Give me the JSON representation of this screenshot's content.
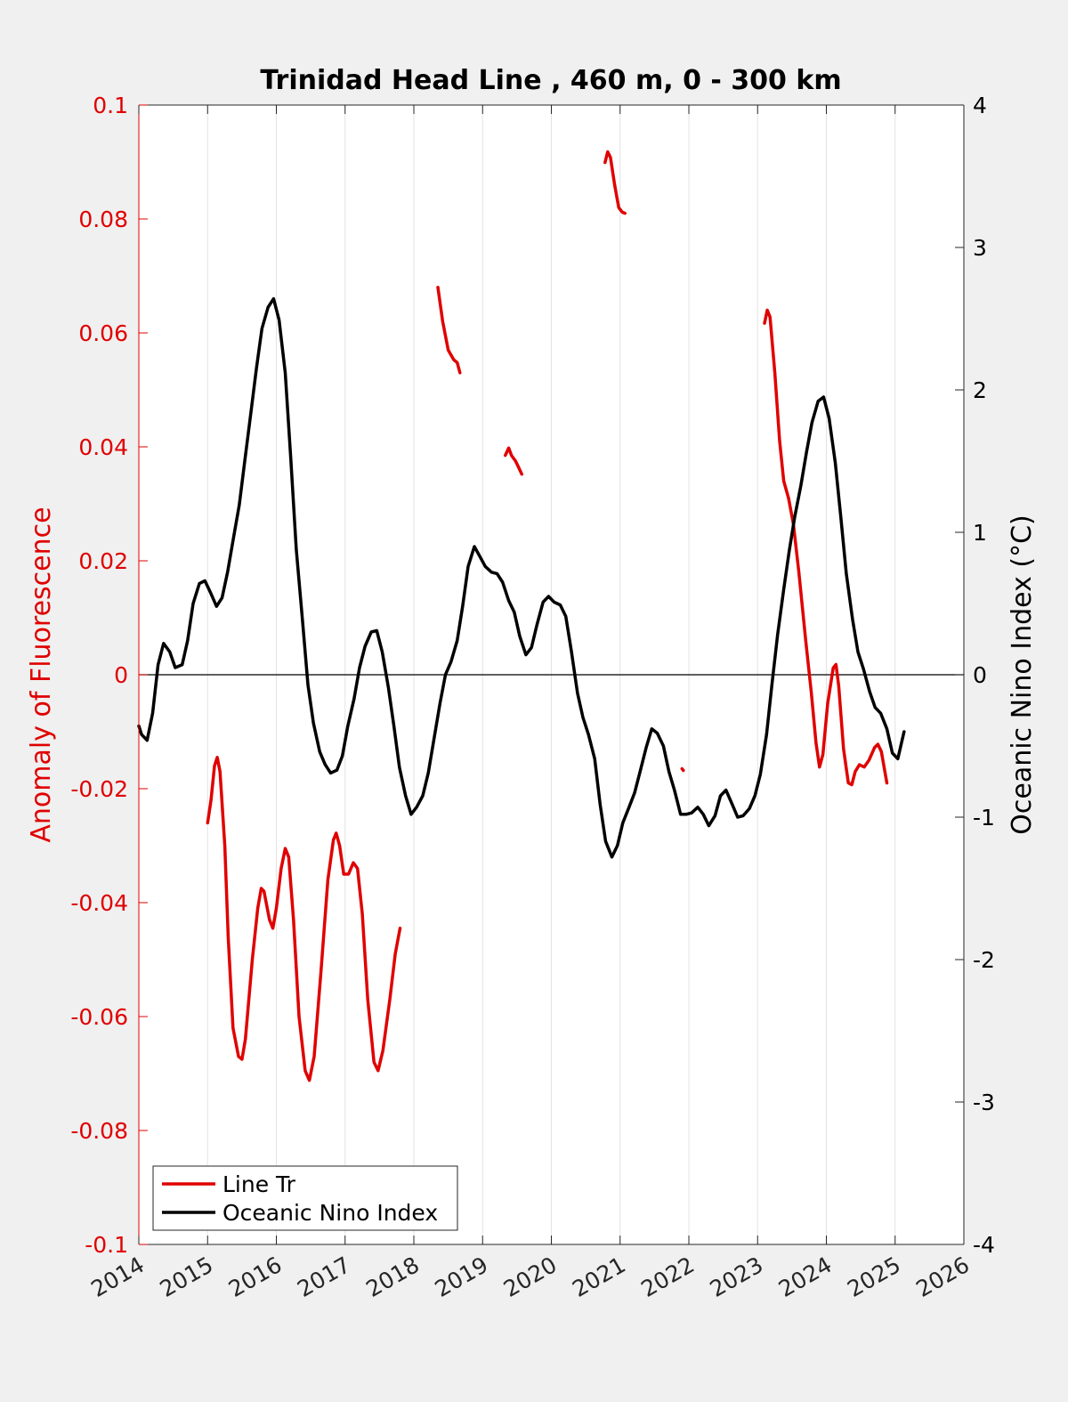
{
  "chart_data": {
    "type": "line",
    "title": "Trinidad Head Line , 460 m, 0 - 300 km",
    "ylabel": "Anomaly of Fluorescence",
    "ylabel_right": "Oceanic Nino Index (°C)",
    "xlim": [
      2014,
      2026
    ],
    "ylim": [
      -0.1,
      0.1
    ],
    "ylim_right": [
      -4,
      4
    ],
    "x_ticks": [
      "2014",
      "2015",
      "2016",
      "2017",
      "2018",
      "2019",
      "2020",
      "2021",
      "2022",
      "2023",
      "2024",
      "2025",
      "2026"
    ],
    "y_ticks_left": [
      "0.1",
      "0.08",
      "0.06",
      "0.04",
      "0.02",
      "0",
      "-0.02",
      "-0.04",
      "-0.06",
      "-0.08",
      "-0.1"
    ],
    "y_ticks_right": [
      "4",
      "3",
      "2",
      "1",
      "0",
      "-1",
      "-2",
      "-3",
      "-4"
    ],
    "grid": "vertical",
    "legend_position": "bottom-left",
    "colors": {
      "line_tr": "#e00000",
      "oni": "#000000",
      "axis_left": "#e00000"
    },
    "series": [
      {
        "name": "Line Tr",
        "axis": "left",
        "segments": [
          [
            [
              2015.0,
              -0.026
            ],
            [
              2015.05,
              -0.022
            ],
            [
              2015.1,
              -0.016
            ],
            [
              2015.14,
              -0.0145
            ],
            [
              2015.18,
              -0.017
            ],
            [
              2015.25,
              -0.03
            ],
            [
              2015.3,
              -0.046
            ],
            [
              2015.37,
              -0.062
            ],
            [
              2015.45,
              -0.067
            ],
            [
              2015.5,
              -0.0675
            ],
            [
              2015.55,
              -0.064
            ],
            [
              2015.65,
              -0.05
            ],
            [
              2015.73,
              -0.041
            ],
            [
              2015.78,
              -0.0375
            ],
            [
              2015.82,
              -0.038
            ],
            [
              2015.9,
              -0.043
            ],
            [
              2015.95,
              -0.0445
            ],
            [
              2016.0,
              -0.041
            ],
            [
              2016.07,
              -0.034
            ],
            [
              2016.13,
              -0.0305
            ],
            [
              2016.18,
              -0.032
            ],
            [
              2016.25,
              -0.043
            ],
            [
              2016.33,
              -0.06
            ],
            [
              2016.42,
              -0.0695
            ],
            [
              2016.48,
              -0.0712
            ],
            [
              2016.55,
              -0.067
            ],
            [
              2016.65,
              -0.052
            ],
            [
              2016.75,
              -0.036
            ],
            [
              2016.83,
              -0.029
            ],
            [
              2016.87,
              -0.0278
            ],
            [
              2016.92,
              -0.03
            ],
            [
              2016.98,
              -0.035
            ],
            [
              2017.05,
              -0.035
            ],
            [
              2017.12,
              -0.033
            ],
            [
              2017.18,
              -0.034
            ],
            [
              2017.25,
              -0.042
            ],
            [
              2017.33,
              -0.057
            ],
            [
              2017.42,
              -0.068
            ],
            [
              2017.48,
              -0.0695
            ],
            [
              2017.55,
              -0.066
            ],
            [
              2017.65,
              -0.057
            ],
            [
              2017.73,
              -0.049
            ],
            [
              2017.8,
              -0.0445
            ]
          ],
          [
            [
              2018.35,
              0.068
            ],
            [
              2018.42,
              0.062
            ],
            [
              2018.5,
              0.057
            ],
            [
              2018.58,
              0.0553
            ],
            [
              2018.63,
              0.0548
            ],
            [
              2018.67,
              0.053
            ]
          ],
          [
            [
              2019.33,
              0.0385
            ],
            [
              2019.38,
              0.0398
            ],
            [
              2019.42,
              0.0385
            ],
            [
              2019.48,
              0.0375
            ],
            [
              2019.52,
              0.0365
            ],
            [
              2019.57,
              0.0352
            ]
          ],
          [
            [
              2020.78,
              0.0899
            ],
            [
              2020.82,
              0.0918
            ],
            [
              2020.86,
              0.0908
            ],
            [
              2020.92,
              0.086
            ],
            [
              2020.98,
              0.082
            ],
            [
              2021.03,
              0.0812
            ],
            [
              2021.07,
              0.081
            ]
          ],
          [
            [
              2021.9,
              -0.0165
            ],
            [
              2021.92,
              -0.0168
            ]
          ],
          [
            [
              2023.1,
              0.0617
            ],
            [
              2023.14,
              0.064
            ],
            [
              2023.18,
              0.0628
            ],
            [
              2023.25,
              0.053
            ],
            [
              2023.32,
              0.041
            ],
            [
              2023.38,
              0.034
            ],
            [
              2023.45,
              0.031
            ],
            [
              2023.52,
              0.0265
            ],
            [
              2023.6,
              0.018
            ],
            [
              2023.7,
              0.006
            ],
            [
              2023.78,
              -0.003
            ],
            [
              2023.85,
              -0.012
            ],
            [
              2023.9,
              -0.0162
            ],
            [
              2023.95,
              -0.014
            ],
            [
              2024.02,
              -0.005
            ],
            [
              2024.1,
              0.0012
            ],
            [
              2024.14,
              0.0018
            ],
            [
              2024.18,
              -0.002
            ],
            [
              2024.25,
              -0.013
            ],
            [
              2024.32,
              -0.019
            ],
            [
              2024.37,
              -0.0193
            ],
            [
              2024.42,
              -0.017
            ],
            [
              2024.48,
              -0.0158
            ],
            [
              2024.55,
              -0.0162
            ],
            [
              2024.62,
              -0.015
            ],
            [
              2024.7,
              -0.0128
            ],
            [
              2024.75,
              -0.0122
            ],
            [
              2024.8,
              -0.0135
            ],
            [
              2024.88,
              -0.019
            ]
          ]
        ]
      },
      {
        "name": "Oceanic Nino Index",
        "axis": "right",
        "segments": [
          [
            [
              2014.0,
              -0.36
            ],
            [
              2014.04,
              -0.42
            ],
            [
              2014.12,
              -0.46
            ],
            [
              2014.2,
              -0.27
            ],
            [
              2014.28,
              0.07
            ],
            [
              2014.36,
              0.22
            ],
            [
              2014.45,
              0.16
            ],
            [
              2014.53,
              0.05
            ],
            [
              2014.63,
              0.07
            ],
            [
              2014.71,
              0.24
            ],
            [
              2014.79,
              0.5
            ],
            [
              2014.88,
              0.64
            ],
            [
              2014.96,
              0.66
            ],
            [
              2015.04,
              0.58
            ],
            [
              2015.13,
              0.48
            ],
            [
              2015.21,
              0.54
            ],
            [
              2015.29,
              0.72
            ],
            [
              2015.38,
              0.97
            ],
            [
              2015.46,
              1.19
            ],
            [
              2015.54,
              1.5
            ],
            [
              2015.63,
              1.84
            ],
            [
              2015.71,
              2.15
            ],
            [
              2015.79,
              2.43
            ],
            [
              2015.88,
              2.58
            ],
            [
              2015.96,
              2.64
            ],
            [
              2016.04,
              2.49
            ],
            [
              2016.13,
              2.12
            ],
            [
              2016.21,
              1.52
            ],
            [
              2016.29,
              0.88
            ],
            [
              2016.38,
              0.38
            ],
            [
              2016.46,
              -0.07
            ],
            [
              2016.54,
              -0.34
            ],
            [
              2016.63,
              -0.54
            ],
            [
              2016.71,
              -0.63
            ],
            [
              2016.79,
              -0.69
            ],
            [
              2016.88,
              -0.67
            ],
            [
              2016.96,
              -0.57
            ],
            [
              2017.04,
              -0.36
            ],
            [
              2017.13,
              -0.17
            ],
            [
              2017.21,
              0.05
            ],
            [
              2017.29,
              0.2
            ],
            [
              2017.38,
              0.3
            ],
            [
              2017.46,
              0.31
            ],
            [
              2017.54,
              0.16
            ],
            [
              2017.63,
              -0.09
            ],
            [
              2017.71,
              -0.36
            ],
            [
              2017.79,
              -0.65
            ],
            [
              2017.88,
              -0.85
            ],
            [
              2017.96,
              -0.98
            ],
            [
              2018.04,
              -0.93
            ],
            [
              2018.13,
              -0.85
            ],
            [
              2018.21,
              -0.69
            ],
            [
              2018.29,
              -0.46
            ],
            [
              2018.38,
              -0.2
            ],
            [
              2018.46,
              0.0
            ],
            [
              2018.54,
              0.09
            ],
            [
              2018.63,
              0.24
            ],
            [
              2018.71,
              0.48
            ],
            [
              2018.79,
              0.76
            ],
            [
              2018.88,
              0.9
            ],
            [
              2018.96,
              0.83
            ],
            [
              2019.04,
              0.76
            ],
            [
              2019.13,
              0.72
            ],
            [
              2019.21,
              0.71
            ],
            [
              2019.29,
              0.65
            ],
            [
              2019.38,
              0.52
            ],
            [
              2019.46,
              0.44
            ],
            [
              2019.54,
              0.27
            ],
            [
              2019.63,
              0.14
            ],
            [
              2019.71,
              0.19
            ],
            [
              2019.79,
              0.35
            ],
            [
              2019.88,
              0.51
            ],
            [
              2019.96,
              0.55
            ],
            [
              2020.04,
              0.51
            ],
            [
              2020.13,
              0.49
            ],
            [
              2020.21,
              0.41
            ],
            [
              2020.29,
              0.17
            ],
            [
              2020.38,
              -0.13
            ],
            [
              2020.46,
              -0.3
            ],
            [
              2020.54,
              -0.42
            ],
            [
              2020.63,
              -0.59
            ],
            [
              2020.71,
              -0.91
            ],
            [
              2020.79,
              -1.17
            ],
            [
              2020.88,
              -1.28
            ],
            [
              2020.96,
              -1.2
            ],
            [
              2021.04,
              -1.04
            ],
            [
              2021.13,
              -0.93
            ],
            [
              2021.21,
              -0.83
            ],
            [
              2021.29,
              -0.68
            ],
            [
              2021.38,
              -0.51
            ],
            [
              2021.46,
              -0.38
            ],
            [
              2021.54,
              -0.41
            ],
            [
              2021.63,
              -0.5
            ],
            [
              2021.71,
              -0.68
            ],
            [
              2021.79,
              -0.81
            ],
            [
              2021.88,
              -0.98
            ],
            [
              2021.96,
              -0.98
            ],
            [
              2022.04,
              -0.97
            ],
            [
              2022.13,
              -0.93
            ],
            [
              2022.21,
              -0.98
            ],
            [
              2022.29,
              -1.06
            ],
            [
              2022.38,
              -0.99
            ],
            [
              2022.46,
              -0.85
            ],
            [
              2022.54,
              -0.81
            ],
            [
              2022.63,
              -0.91
            ],
            [
              2022.71,
              -1.0
            ],
            [
              2022.79,
              -0.99
            ],
            [
              2022.88,
              -0.94
            ],
            [
              2022.96,
              -0.85
            ],
            [
              2023.04,
              -0.7
            ],
            [
              2023.13,
              -0.42
            ],
            [
              2023.21,
              -0.06
            ],
            [
              2023.29,
              0.28
            ],
            [
              2023.38,
              0.6
            ],
            [
              2023.46,
              0.87
            ],
            [
              2023.54,
              1.11
            ],
            [
              2023.63,
              1.33
            ],
            [
              2023.71,
              1.56
            ],
            [
              2023.79,
              1.77
            ],
            [
              2023.88,
              1.92
            ],
            [
              2023.96,
              1.95
            ],
            [
              2024.04,
              1.8
            ],
            [
              2024.13,
              1.49
            ],
            [
              2024.21,
              1.11
            ],
            [
              2024.29,
              0.71
            ],
            [
              2024.38,
              0.39
            ],
            [
              2024.46,
              0.16
            ],
            [
              2024.54,
              0.04
            ],
            [
              2024.63,
              -0.12
            ],
            [
              2024.71,
              -0.23
            ],
            [
              2024.79,
              -0.27
            ],
            [
              2024.88,
              -0.38
            ],
            [
              2024.96,
              -0.55
            ],
            [
              2025.04,
              -0.59
            ],
            [
              2025.13,
              -0.4
            ]
          ]
        ]
      }
    ]
  }
}
